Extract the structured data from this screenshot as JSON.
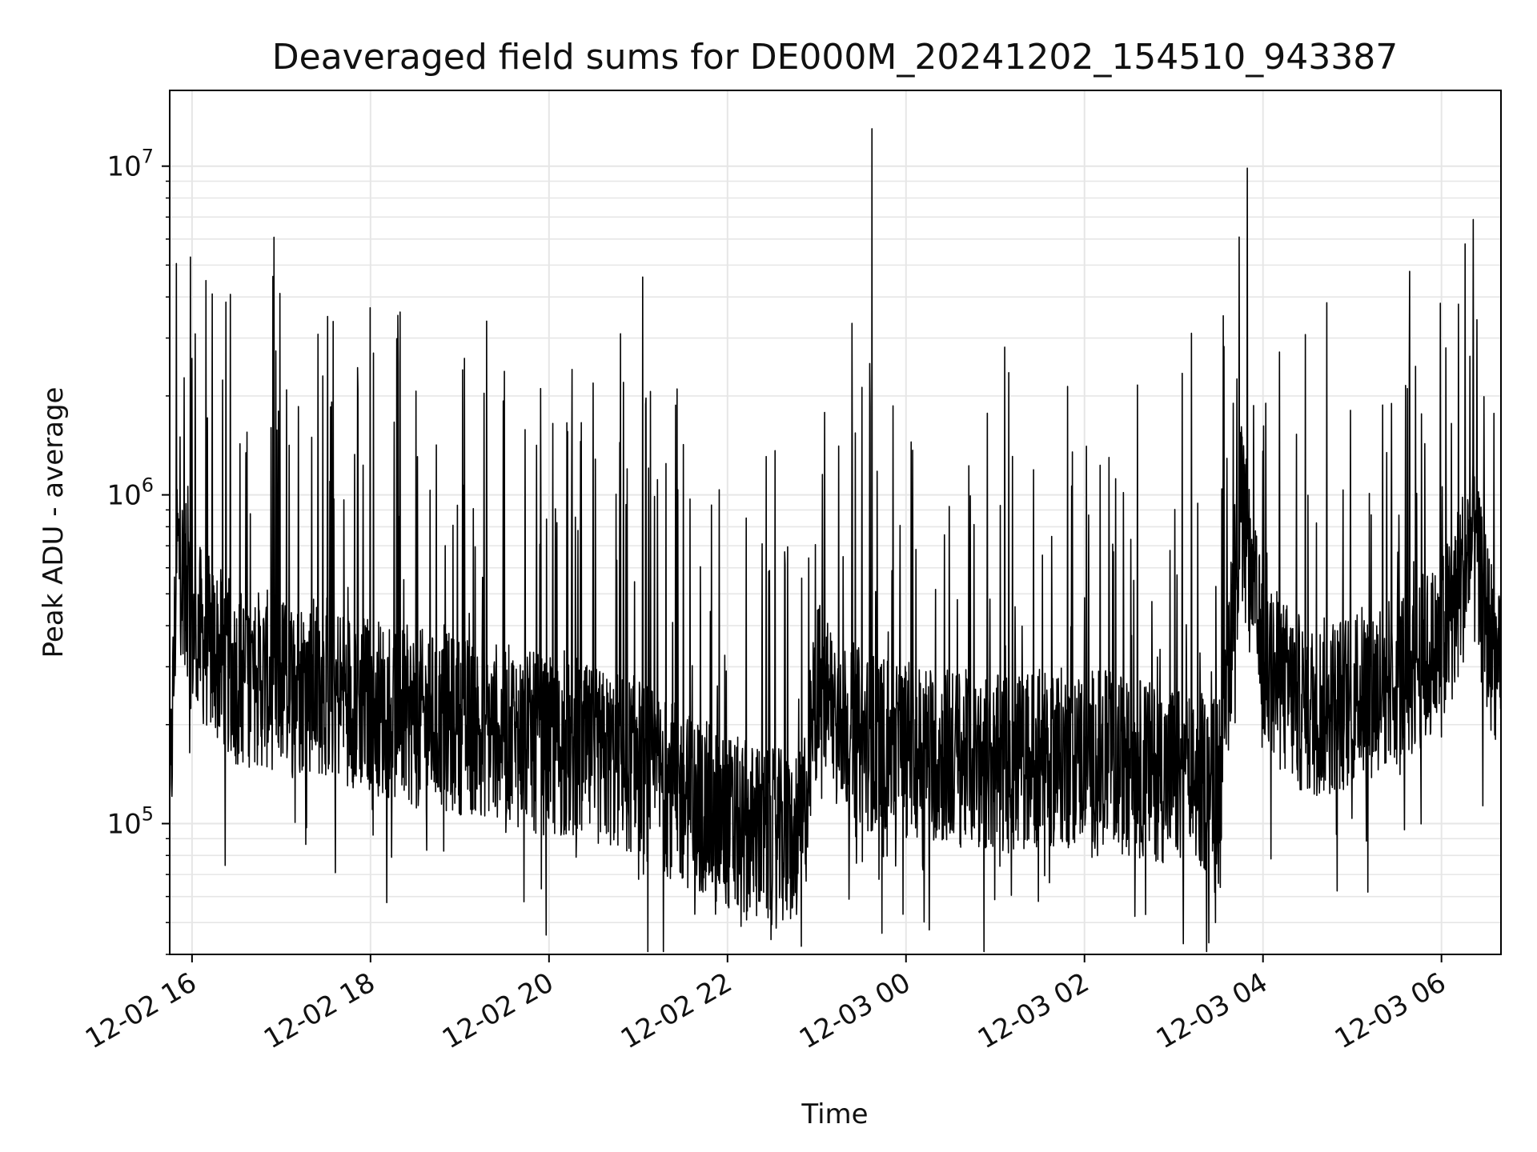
{
  "chart_data": {
    "type": "line",
    "title": "Deaveraged field sums for DE000M_20241202_154510_943387",
    "xlabel": "Time",
    "ylabel": "Peak ADU - average",
    "yscale": "log",
    "ylim": [
      40000,
      17000000
    ],
    "xlim": [
      "2024-12-02 15:45",
      "2024-12-03 06:40"
    ],
    "grid": true,
    "line_color": "#000000",
    "grid_color": "#e6e6e6",
    "x_ticks": [
      {
        "label": "12-02 16",
        "value": "2024-12-02 16:00"
      },
      {
        "label": "12-02 18",
        "value": "2024-12-02 18:00"
      },
      {
        "label": "12-02 20",
        "value": "2024-12-02 20:00"
      },
      {
        "label": "12-02 22",
        "value": "2024-12-02 22:00"
      },
      {
        "label": "12-03 00",
        "value": "2024-12-03 00:00"
      },
      {
        "label": "12-03 02",
        "value": "2024-12-03 02:00"
      },
      {
        "label": "12-03 04",
        "value": "2024-12-03 04:00"
      },
      {
        "label": "12-03 06",
        "value": "2024-12-03 06:00"
      }
    ],
    "y_ticks": [
      {
        "mantissa": "10",
        "exponent": "5",
        "value": 100000
      },
      {
        "mantissa": "10",
        "exponent": "6",
        "value": 1000000
      },
      {
        "mantissa": "10",
        "exponent": "7",
        "value": 10000000
      }
    ],
    "series": [
      {
        "x": [
          "2024-12-02 15:45",
          "2024-12-02 15:50",
          "2024-12-02 16:00",
          "2024-12-02 16:30",
          "2024-12-02 17:00",
          "2024-12-02 17:30",
          "2024-12-02 18:00",
          "2024-12-02 18:30",
          "2024-12-02 19:00",
          "2024-12-02 19:30",
          "2024-12-02 20:00",
          "2024-12-02 20:30",
          "2024-12-02 21:00",
          "2024-12-02 21:30",
          "2024-12-02 22:00",
          "2024-12-02 22:30",
          "2024-12-02 22:50",
          "2024-12-02 23:00",
          "2024-12-02 23:30",
          "2024-12-03 00:00",
          "2024-12-03 00:30",
          "2024-12-03 01:00",
          "2024-12-03 01:30",
          "2024-12-03 02:00",
          "2024-12-03 02:30",
          "2024-12-03 03:00",
          "2024-12-03 03:30",
          "2024-12-03 03:45",
          "2024-12-03 04:00",
          "2024-12-03 04:30",
          "2024-12-03 05:00",
          "2024-12-03 05:30",
          "2024-12-03 06:00",
          "2024-12-03 06:20",
          "2024-12-03 06:40"
        ],
        "baseline": [
          100000,
          700000,
          400000,
          280000,
          270000,
          260000,
          230000,
          210000,
          200000,
          190000,
          170000,
          160000,
          150000,
          120000,
          100000,
          90000,
          90000,
          260000,
          180000,
          170000,
          160000,
          150000,
          160000,
          160000,
          150000,
          140000,
          130000,
          900000,
          300000,
          220000,
          240000,
          280000,
          340000,
          700000,
          250000
        ],
        "peaks": [
          {
            "t": "2024-12-02 16:00",
            "v": 2600000
          },
          {
            "t": "2024-12-02 16:59",
            "v": 4100000
          },
          {
            "t": "2024-12-02 17:28",
            "v": 2300000
          },
          {
            "t": "2024-12-02 18:20",
            "v": 3600000
          },
          {
            "t": "2024-12-02 19:02",
            "v": 2400000
          },
          {
            "t": "2024-12-02 20:50",
            "v": 2200000
          },
          {
            "t": "2024-12-02 21:03",
            "v": 4600000
          },
          {
            "t": "2024-12-02 21:26",
            "v": 2100000
          },
          {
            "t": "2024-12-02 23:37",
            "v": 13000000
          },
          {
            "t": "2024-12-03 03:40",
            "v": 1900000
          },
          {
            "t": "2024-12-03 04:02",
            "v": 1900000
          },
          {
            "t": "2024-12-03 06:03",
            "v": 2800000
          },
          {
            "t": "2024-12-03 06:16",
            "v": 5800000
          }
        ],
        "troughs": [
          {
            "t": "2024-12-02 21:38",
            "v": 53000
          },
          {
            "t": "2024-12-02 21:52",
            "v": 53000
          },
          {
            "t": "2024-12-02 22:30",
            "v": 60000
          },
          {
            "t": "2024-12-02 23:58",
            "v": 53000
          },
          {
            "t": "2024-12-03 03:28",
            "v": 50000
          }
        ]
      }
    ]
  }
}
